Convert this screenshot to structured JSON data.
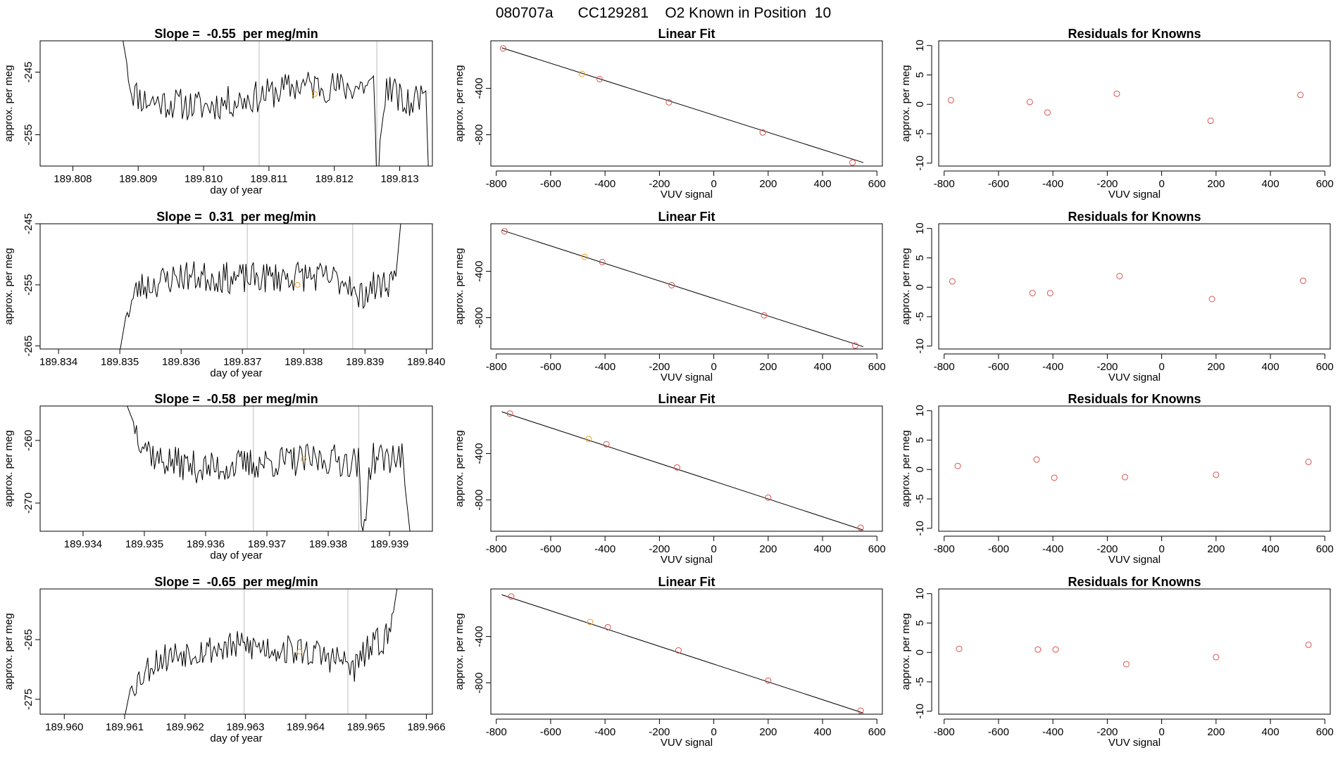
{
  "title": "080707a      CC129281    O2 Known in Position  10",
  "colors": {
    "point": "#d9534f",
    "highlight": "#f0a020",
    "line": "#000000",
    "guide": "#bdbdbd"
  },
  "chart_data": [
    {
      "row": 1,
      "timeseries": {
        "type": "line",
        "title": "Slope =  -0.55  per meg/min",
        "xlabel": "day of year",
        "ylabel": "approx. per meg",
        "xlim": [
          189.8075,
          189.8135
        ],
        "ylim": [
          -260,
          -240
        ],
        "xticks": [
          "189.808",
          "189.809",
          "189.810",
          "189.811",
          "189.812",
          "189.813"
        ],
        "yticks": [
          "-245",
          "-255"
        ],
        "vlines": [
          189.81085,
          189.81265
        ],
        "highlight": {
          "x": 189.8117,
          "y": -248.5
        },
        "trace_start": 189.8087,
        "trace_end": 189.81345,
        "noise_seed": 11,
        "trace_shape": [
          [
            189.8087,
            -236
          ],
          [
            189.8089,
            -248
          ],
          [
            189.8091,
            -249.5
          ],
          [
            189.81,
            -250.5
          ],
          [
            189.8108,
            -249
          ],
          [
            189.8115,
            -247
          ],
          [
            189.8122,
            -247.5
          ],
          [
            189.8126,
            -247
          ],
          [
            189.81265,
            -262
          ],
          [
            189.8128,
            -247
          ],
          [
            189.8131,
            -250.5
          ],
          [
            189.8134,
            -248
          ],
          [
            189.81345,
            -264
          ]
        ]
      },
      "fit": {
        "type": "scatter",
        "title": "Linear Fit",
        "xlabel": "VUV signal",
        "ylabel": "approx. per meg",
        "xlim": [
          -820,
          620
        ],
        "ylim": [
          -1070,
          10
        ],
        "xticks": [
          -800,
          -600,
          -400,
          -200,
          0,
          200,
          400,
          600
        ],
        "yticks": [
          -400,
          -800
        ],
        "line": [
          [
            -780,
            -50
          ],
          [
            550,
            -1040
          ]
        ],
        "points": [
          [
            -775,
            -55
          ],
          [
            -485,
            -275
          ],
          [
            -420,
            -320
          ],
          [
            -165,
            -520
          ],
          [
            180,
            -780
          ],
          [
            510,
            -1040
          ]
        ],
        "highlight_index": 1
      },
      "residuals": {
        "type": "scatter",
        "title": "Residuals for Knowns",
        "xlabel": "VUV signal",
        "ylabel": "approx. per meg",
        "xlim": [
          -820,
          620
        ],
        "ylim": [
          -10.5,
          10.8
        ],
        "xticks": [
          -800,
          -600,
          -400,
          -200,
          0,
          200,
          400,
          600
        ],
        "yticks": [
          10,
          5,
          0,
          -5,
          -10
        ],
        "points": [
          [
            -775,
            0.7
          ],
          [
            -485,
            0.4
          ],
          [
            -420,
            -1.4
          ],
          [
            -165,
            1.8
          ],
          [
            180,
            -2.8
          ],
          [
            510,
            1.6
          ]
        ]
      }
    },
    {
      "row": 2,
      "timeseries": {
        "type": "line",
        "title": "Slope =  0.31  per meg/min",
        "xlabel": "day of year",
        "ylabel": "approx. per meg",
        "xlim": [
          189.8337,
          189.8401
        ],
        "ylim": [
          -265.5,
          -245
        ],
        "xticks": [
          "189.834",
          "189.835",
          "189.836",
          "189.837",
          "189.838",
          "189.839",
          "189.840"
        ],
        "yticks": [
          "-245",
          "-255",
          "-265"
        ],
        "vlines": [
          189.83708,
          189.8388
        ],
        "highlight": {
          "x": 189.8379,
          "y": -255
        },
        "trace_start": 189.835,
        "trace_end": 189.8396,
        "noise_seed": 23,
        "trace_shape": [
          [
            189.835,
            -266
          ],
          [
            189.8351,
            -260
          ],
          [
            189.8353,
            -255.5
          ],
          [
            189.836,
            -253.5
          ],
          [
            189.837,
            -254
          ],
          [
            189.838,
            -253.5
          ],
          [
            189.8388,
            -254.5
          ],
          [
            189.83885,
            -258
          ],
          [
            189.839,
            -256
          ],
          [
            189.8395,
            -254
          ],
          [
            189.8396,
            -243
          ]
        ]
      },
      "fit": {
        "type": "scatter",
        "title": "Linear Fit",
        "xlabel": "VUV signal",
        "ylabel": "approx. per meg",
        "xlim": [
          -820,
          620
        ],
        "ylim": [
          -1070,
          10
        ],
        "xticks": [
          -800,
          -600,
          -400,
          -200,
          0,
          200,
          400,
          600
        ],
        "yticks": [
          -400,
          -800
        ],
        "line": [
          [
            -780,
            -45
          ],
          [
            550,
            -1050
          ]
        ],
        "points": [
          [
            -770,
            -55
          ],
          [
            -475,
            -275
          ],
          [
            -410,
            -320
          ],
          [
            -155,
            -520
          ],
          [
            185,
            -780
          ],
          [
            520,
            -1040
          ]
        ],
        "highlight_index": 1
      },
      "residuals": {
        "type": "scatter",
        "title": "Residuals for Knowns",
        "xlabel": "VUV signal",
        "ylabel": "approx. per meg",
        "xlim": [
          -820,
          620
        ],
        "ylim": [
          -10.5,
          10.8
        ],
        "xticks": [
          -800,
          -600,
          -400,
          -200,
          0,
          200,
          400,
          600
        ],
        "yticks": [
          10,
          5,
          0,
          -5,
          -10
        ],
        "points": [
          [
            -770,
            1.0
          ],
          [
            -475,
            -1.0
          ],
          [
            -410,
            -1.0
          ],
          [
            -155,
            1.9
          ],
          [
            185,
            -2.0
          ],
          [
            520,
            1.1
          ]
        ]
      }
    },
    {
      "row": 3,
      "timeseries": {
        "type": "line",
        "title": "Slope =  -0.58  per meg/min",
        "xlabel": "day of year",
        "ylabel": "approx. per meg",
        "xlim": [
          189.9333,
          189.9397
        ],
        "ylim": [
          -274.5,
          -254.5
        ],
        "xticks": [
          "189.934",
          "189.935",
          "189.936",
          "189.937",
          "189.938",
          "189.939"
        ],
        "yticks": [
          "-260",
          "-270"
        ],
        "vlines": [
          189.93678,
          189.9385
        ],
        "highlight": {
          "x": 189.9376,
          "y": -263
        },
        "trace_start": 189.9347,
        "trace_end": 189.93935,
        "noise_seed": 37,
        "trace_shape": [
          [
            189.9347,
            -254
          ],
          [
            189.9349,
            -259
          ],
          [
            189.9352,
            -263
          ],
          [
            189.936,
            -264.5
          ],
          [
            189.937,
            -263.5
          ],
          [
            189.938,
            -263
          ],
          [
            189.9385,
            -263.5
          ],
          [
            189.93855,
            -276
          ],
          [
            189.9387,
            -263
          ],
          [
            189.9392,
            -262.5
          ],
          [
            189.93935,
            -276
          ]
        ]
      },
      "fit": {
        "type": "scatter",
        "title": "Linear Fit",
        "xlabel": "VUV signal",
        "ylabel": "approx. per meg",
        "xlim": [
          -820,
          620
        ],
        "ylim": [
          -1070,
          10
        ],
        "xticks": [
          -800,
          -600,
          -400,
          -200,
          0,
          200,
          400,
          600
        ],
        "yticks": [
          -400,
          -800
        ],
        "line": [
          [
            -780,
            -40
          ],
          [
            550,
            -1060
          ]
        ],
        "points": [
          [
            -750,
            -55
          ],
          [
            -460,
            -275
          ],
          [
            -395,
            -320
          ],
          [
            -135,
            -520
          ],
          [
            200,
            -780
          ],
          [
            540,
            -1040
          ]
        ],
        "highlight_index": 1
      },
      "residuals": {
        "type": "scatter",
        "title": "Residuals for Knowns",
        "xlabel": "VUV signal",
        "ylabel": "approx. per meg",
        "xlim": [
          -820,
          620
        ],
        "ylim": [
          -10.5,
          10.8
        ],
        "xticks": [
          -800,
          -600,
          -400,
          -200,
          0,
          200,
          400,
          600
        ],
        "yticks": [
          10,
          5,
          0,
          -5,
          -10
        ],
        "points": [
          [
            -750,
            0.6
          ],
          [
            -460,
            1.7
          ],
          [
            -395,
            -1.4
          ],
          [
            -135,
            -1.3
          ],
          [
            200,
            -0.9
          ],
          [
            540,
            1.3
          ]
        ]
      }
    },
    {
      "row": 4,
      "timeseries": {
        "type": "line",
        "title": "Slope =  -0.65  per meg/min",
        "xlabel": "day of year",
        "ylabel": "approx. per meg",
        "xlim": [
          189.9596,
          189.9661
        ],
        "ylim": [
          -277.5,
          -256.5
        ],
        "xticks": [
          "189.960",
          "189.961",
          "189.962",
          "189.963",
          "189.964",
          "189.965",
          "189.966"
        ],
        "yticks": [
          "-265",
          "-275"
        ],
        "vlines": [
          189.96298,
          189.9647
        ],
        "highlight": {
          "x": 189.9639,
          "y": -267
        },
        "trace_start": 189.961,
        "trace_end": 189.96555,
        "noise_seed": 53,
        "trace_shape": [
          [
            189.961,
            -278
          ],
          [
            189.9611,
            -273
          ],
          [
            189.9615,
            -268.5
          ],
          [
            189.962,
            -267
          ],
          [
            189.963,
            -266
          ],
          [
            189.964,
            -267
          ],
          [
            189.9646,
            -268.5
          ],
          [
            189.9648,
            -270
          ],
          [
            189.965,
            -267
          ],
          [
            189.9654,
            -264
          ],
          [
            189.96555,
            -254
          ]
        ]
      },
      "fit": {
        "type": "scatter",
        "title": "Linear Fit",
        "xlabel": "VUV signal",
        "ylabel": "approx. per meg",
        "xlim": [
          -820,
          620
        ],
        "ylim": [
          -1070,
          10
        ],
        "xticks": [
          -800,
          -600,
          -400,
          -200,
          0,
          200,
          400,
          600
        ],
        "yticks": [
          -400,
          -800
        ],
        "line": [
          [
            -780,
            -40
          ],
          [
            550,
            -1060
          ]
        ],
        "points": [
          [
            -745,
            -55
          ],
          [
            -455,
            -275
          ],
          [
            -390,
            -320
          ],
          [
            -130,
            -520
          ],
          [
            200,
            -780
          ],
          [
            540,
            -1040
          ]
        ],
        "highlight_index": 1
      },
      "residuals": {
        "type": "scatter",
        "title": "Residuals for Knowns",
        "xlabel": "VUV signal",
        "ylabel": "approx. per meg",
        "xlim": [
          -820,
          620
        ],
        "ylim": [
          -10.5,
          10.8
        ],
        "xticks": [
          -800,
          -600,
          -400,
          -200,
          0,
          200,
          400,
          600
        ],
        "yticks": [
          10,
          5,
          0,
          -5,
          -10
        ],
        "points": [
          [
            -745,
            0.6
          ],
          [
            -455,
            0.5
          ],
          [
            -390,
            0.5
          ],
          [
            -130,
            -2.0
          ],
          [
            200,
            -0.8
          ],
          [
            540,
            1.3
          ]
        ]
      }
    }
  ]
}
